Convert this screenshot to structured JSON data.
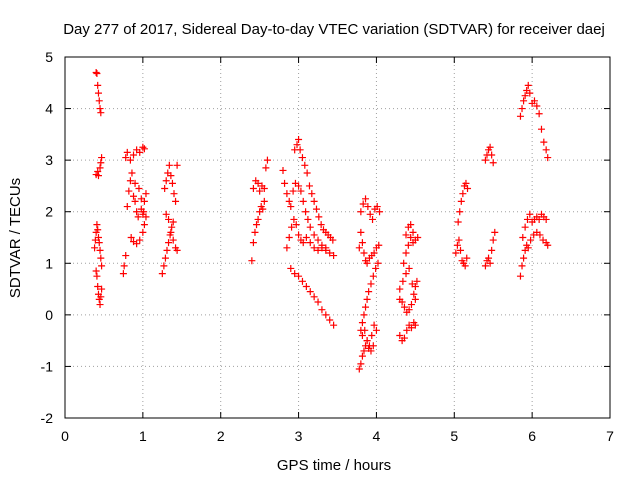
{
  "chart_data": {
    "type": "scatter",
    "title": "Day 277 of 2017, Sidereal Day-to-day VTEC variation (SDTVAR) for receiver daej",
    "xlabel": "GPS time / hours",
    "ylabel": "SDTVAR / TECUs",
    "xlim": [
      0,
      7
    ],
    "ylim": [
      -2,
      5
    ],
    "xticks": [
      "0",
      "1",
      "2",
      "3",
      "4",
      "5",
      "6",
      "7"
    ],
    "yticks": [
      "-2",
      "-1",
      "0",
      "1",
      "2",
      "3",
      "4",
      "5"
    ],
    "grid": true,
    "marker": "+",
    "series": [
      {
        "name": "SDTVAR",
        "color": "#ff0000",
        "points": [
          [
            0.4,
            4.7
          ],
          [
            0.41,
            4.68
          ],
          [
            0.42,
            4.45
          ],
          [
            0.43,
            4.3
          ],
          [
            0.44,
            4.15
          ],
          [
            0.45,
            4.0
          ],
          [
            0.46,
            3.92
          ],
          [
            0.4,
            2.72
          ],
          [
            0.42,
            2.78
          ],
          [
            0.43,
            2.7
          ],
          [
            0.45,
            2.85
          ],
          [
            0.46,
            2.95
          ],
          [
            0.47,
            3.05
          ],
          [
            0.38,
            1.3
          ],
          [
            0.39,
            1.45
          ],
          [
            0.4,
            1.6
          ],
          [
            0.41,
            1.75
          ],
          [
            0.42,
            1.65
          ],
          [
            0.43,
            1.5
          ],
          [
            0.44,
            1.4
          ],
          [
            0.45,
            1.25
          ],
          [
            0.46,
            1.1
          ],
          [
            0.47,
            0.95
          ],
          [
            0.4,
            0.85
          ],
          [
            0.41,
            0.75
          ],
          [
            0.42,
            0.55
          ],
          [
            0.43,
            0.4
          ],
          [
            0.44,
            0.3
          ],
          [
            0.45,
            0.2
          ],
          [
            0.46,
            0.35
          ],
          [
            0.47,
            0.5
          ],
          [
            0.75,
            0.8
          ],
          [
            0.76,
            0.95
          ],
          [
            0.78,
            1.15
          ],
          [
            0.8,
            2.1
          ],
          [
            0.82,
            2.4
          ],
          [
            0.84,
            2.6
          ],
          [
            0.86,
            2.75
          ],
          [
            0.88,
            2.3
          ],
          [
            0.9,
            2.2
          ],
          [
            0.92,
            2.0
          ],
          [
            0.94,
            1.9
          ],
          [
            0.78,
            3.05
          ],
          [
            0.8,
            3.15
          ],
          [
            0.84,
            3.0
          ],
          [
            0.88,
            3.1
          ],
          [
            0.92,
            3.2
          ],
          [
            0.96,
            3.15
          ],
          [
            1.0,
            3.25
          ],
          [
            1.02,
            3.22
          ],
          [
            0.85,
            1.5
          ],
          [
            0.88,
            1.42
          ],
          [
            0.92,
            1.38
          ],
          [
            0.96,
            1.45
          ],
          [
            1.0,
            1.6
          ],
          [
            1.02,
            1.75
          ],
          [
            0.98,
            2.05
          ],
          [
            1.0,
            1.95
          ],
          [
            1.02,
            2.2
          ],
          [
            1.04,
            2.35
          ],
          [
            0.9,
            2.55
          ],
          [
            0.95,
            2.45
          ],
          [
            0.98,
            2.25
          ],
          [
            1.01,
            2.0
          ],
          [
            1.04,
            1.9
          ],
          [
            1.25,
            0.8
          ],
          [
            1.27,
            0.95
          ],
          [
            1.29,
            1.1
          ],
          [
            1.31,
            1.25
          ],
          [
            1.33,
            1.4
          ],
          [
            1.35,
            1.55
          ],
          [
            1.37,
            1.7
          ],
          [
            1.39,
            1.8
          ],
          [
            1.28,
            2.45
          ],
          [
            1.3,
            2.6
          ],
          [
            1.32,
            2.75
          ],
          [
            1.34,
            2.9
          ],
          [
            1.36,
            2.7
          ],
          [
            1.38,
            2.55
          ],
          [
            1.4,
            2.35
          ],
          [
            1.42,
            2.2
          ],
          [
            1.44,
            2.9
          ],
          [
            1.3,
            1.95
          ],
          [
            1.33,
            1.85
          ],
          [
            1.36,
            1.6
          ],
          [
            1.39,
            1.45
          ],
          [
            1.42,
            1.3
          ],
          [
            1.44,
            1.25
          ],
          [
            2.4,
            1.05
          ],
          [
            2.42,
            1.4
          ],
          [
            2.44,
            1.6
          ],
          [
            2.46,
            1.75
          ],
          [
            2.48,
            1.85
          ],
          [
            2.5,
            2.0
          ],
          [
            2.52,
            2.1
          ],
          [
            2.54,
            2.05
          ],
          [
            2.56,
            2.2
          ],
          [
            2.42,
            2.45
          ],
          [
            2.45,
            2.6
          ],
          [
            2.48,
            2.55
          ],
          [
            2.5,
            2.4
          ],
          [
            2.53,
            2.5
          ],
          [
            2.56,
            2.45
          ],
          [
            2.58,
            2.85
          ],
          [
            2.6,
            3.0
          ],
          [
            2.8,
            2.8
          ],
          [
            2.82,
            2.55
          ],
          [
            2.85,
            2.35
          ],
          [
            2.88,
            2.2
          ],
          [
            2.9,
            2.1
          ],
          [
            2.93,
            2.4
          ],
          [
            2.96,
            2.55
          ],
          [
            3.0,
            2.5
          ],
          [
            3.03,
            2.4
          ],
          [
            3.06,
            2.2
          ],
          [
            3.09,
            2.0
          ],
          [
            3.12,
            1.85
          ],
          [
            3.15,
            1.7
          ],
          [
            3.2,
            1.55
          ],
          [
            3.25,
            1.45
          ],
          [
            3.3,
            1.35
          ],
          [
            3.35,
            1.3
          ],
          [
            3.4,
            1.2
          ],
          [
            3.45,
            1.15
          ],
          [
            2.85,
            1.3
          ],
          [
            2.88,
            1.5
          ],
          [
            2.91,
            1.7
          ],
          [
            2.94,
            1.85
          ],
          [
            2.97,
            1.75
          ],
          [
            3.0,
            1.55
          ],
          [
            3.03,
            1.45
          ],
          [
            3.06,
            1.4
          ],
          [
            3.1,
            1.5
          ],
          [
            3.15,
            1.4
          ],
          [
            3.2,
            1.3
          ],
          [
            3.25,
            1.25
          ],
          [
            3.3,
            1.3
          ],
          [
            3.35,
            1.25
          ],
          [
            2.95,
            3.2
          ],
          [
            2.98,
            3.3
          ],
          [
            3.0,
            3.4
          ],
          [
            3.02,
            3.2
          ],
          [
            3.05,
            3.05
          ],
          [
            3.08,
            2.9
          ],
          [
            3.11,
            2.75
          ],
          [
            3.14,
            2.5
          ],
          [
            3.17,
            2.35
          ],
          [
            3.2,
            2.2
          ],
          [
            3.23,
            2.05
          ],
          [
            3.26,
            1.9
          ],
          [
            3.29,
            1.75
          ],
          [
            3.32,
            1.65
          ],
          [
            3.35,
            1.6
          ],
          [
            3.38,
            1.55
          ],
          [
            3.41,
            1.5
          ],
          [
            3.44,
            1.45
          ],
          [
            2.9,
            0.9
          ],
          [
            2.95,
            0.8
          ],
          [
            3.0,
            0.75
          ],
          [
            3.05,
            0.65
          ],
          [
            3.1,
            0.55
          ],
          [
            3.15,
            0.45
          ],
          [
            3.2,
            0.35
          ],
          [
            3.25,
            0.25
          ],
          [
            3.3,
            0.1
          ],
          [
            3.35,
            0.0
          ],
          [
            3.4,
            -0.1
          ],
          [
            3.45,
            -0.2
          ],
          [
            3.78,
            -1.05
          ],
          [
            3.8,
            -0.95
          ],
          [
            3.82,
            -0.8
          ],
          [
            3.84,
            -0.7
          ],
          [
            3.86,
            -0.6
          ],
          [
            3.88,
            -0.5
          ],
          [
            3.9,
            -0.65
          ],
          [
            3.93,
            -0.7
          ],
          [
            3.96,
            -0.6
          ],
          [
            3.8,
            -0.3
          ],
          [
            3.82,
            -0.15
          ],
          [
            3.84,
            0.0
          ],
          [
            3.86,
            0.15
          ],
          [
            3.88,
            0.3
          ],
          [
            3.9,
            0.45
          ],
          [
            3.93,
            0.6
          ],
          [
            3.96,
            0.75
          ],
          [
            3.99,
            0.9
          ],
          [
            4.02,
            1.0
          ],
          [
            3.78,
            1.3
          ],
          [
            3.8,
            1.6
          ],
          [
            3.82,
            1.4
          ],
          [
            3.84,
            1.2
          ],
          [
            3.86,
            1.05
          ],
          [
            3.88,
            1.0
          ],
          [
            3.91,
            1.1
          ],
          [
            3.94,
            1.15
          ],
          [
            3.97,
            1.2
          ],
          [
            4.0,
            1.3
          ],
          [
            4.03,
            1.35
          ],
          [
            3.8,
            2.0
          ],
          [
            3.83,
            2.15
          ],
          [
            3.86,
            2.25
          ],
          [
            3.89,
            2.1
          ],
          [
            3.92,
            1.95
          ],
          [
            3.95,
            1.85
          ],
          [
            3.98,
            2.05
          ],
          [
            4.01,
            2.1
          ],
          [
            4.04,
            2.0
          ],
          [
            3.82,
            -0.4
          ],
          [
            3.85,
            -0.3
          ],
          [
            3.88,
            -0.5
          ],
          [
            3.91,
            -0.6
          ],
          [
            3.94,
            -0.4
          ],
          [
            3.97,
            -0.2
          ],
          [
            4.0,
            -0.3
          ],
          [
            4.3,
            -0.4
          ],
          [
            4.33,
            -0.5
          ],
          [
            4.36,
            -0.45
          ],
          [
            4.39,
            -0.3
          ],
          [
            4.42,
            -0.2
          ],
          [
            4.45,
            -0.25
          ],
          [
            4.48,
            -0.15
          ],
          [
            4.5,
            -0.2
          ],
          [
            4.3,
            0.3
          ],
          [
            4.33,
            0.25
          ],
          [
            4.36,
            0.15
          ],
          [
            4.39,
            0.05
          ],
          [
            4.42,
            0.1
          ],
          [
            4.45,
            0.2
          ],
          [
            4.48,
            0.4
          ],
          [
            4.5,
            0.55
          ],
          [
            4.52,
            0.65
          ],
          [
            4.35,
            1.0
          ],
          [
            4.38,
            1.2
          ],
          [
            4.41,
            1.35
          ],
          [
            4.44,
            1.5
          ],
          [
            4.47,
            1.4
          ],
          [
            4.5,
            1.45
          ],
          [
            4.53,
            1.5
          ],
          [
            4.38,
            1.55
          ],
          [
            4.41,
            1.7
          ],
          [
            4.44,
            1.75
          ],
          [
            4.47,
            1.6
          ],
          [
            4.3,
            0.5
          ],
          [
            4.34,
            0.65
          ],
          [
            4.38,
            0.8
          ],
          [
            4.42,
            0.9
          ],
          [
            4.46,
            0.6
          ],
          [
            4.5,
            0.3
          ],
          [
            5.02,
            1.2
          ],
          [
            5.04,
            1.35
          ],
          [
            5.06,
            1.45
          ],
          [
            5.08,
            1.25
          ],
          [
            5.1,
            1.05
          ],
          [
            5.12,
            1.0
          ],
          [
            5.14,
            0.95
          ],
          [
            5.16,
            1.1
          ],
          [
            5.05,
            1.8
          ],
          [
            5.07,
            2.0
          ],
          [
            5.09,
            2.2
          ],
          [
            5.11,
            2.35
          ],
          [
            5.13,
            2.5
          ],
          [
            5.15,
            2.55
          ],
          [
            5.17,
            2.45
          ],
          [
            5.4,
            0.95
          ],
          [
            5.42,
            1.05
          ],
          [
            5.44,
            1.1
          ],
          [
            5.46,
            1.0
          ],
          [
            5.48,
            1.25
          ],
          [
            5.5,
            1.45
          ],
          [
            5.52,
            1.6
          ],
          [
            5.4,
            3.0
          ],
          [
            5.42,
            3.1
          ],
          [
            5.44,
            3.2
          ],
          [
            5.46,
            3.25
          ],
          [
            5.48,
            3.1
          ],
          [
            5.5,
            2.95
          ],
          [
            5.85,
            0.75
          ],
          [
            5.87,
            0.95
          ],
          [
            5.89,
            1.1
          ],
          [
            5.91,
            1.25
          ],
          [
            5.93,
            1.35
          ],
          [
            5.95,
            1.3
          ],
          [
            5.98,
            1.45
          ],
          [
            6.02,
            1.55
          ],
          [
            6.06,
            1.6
          ],
          [
            6.1,
            1.55
          ],
          [
            6.14,
            1.45
          ],
          [
            6.18,
            1.4
          ],
          [
            6.2,
            1.35
          ],
          [
            5.88,
            1.5
          ],
          [
            5.91,
            1.7
          ],
          [
            5.94,
            1.85
          ],
          [
            5.97,
            1.95
          ],
          [
            6.0,
            1.8
          ],
          [
            6.03,
            1.85
          ],
          [
            6.06,
            1.9
          ],
          [
            6.09,
            1.85
          ],
          [
            6.12,
            1.95
          ],
          [
            6.15,
            1.9
          ],
          [
            6.18,
            1.85
          ],
          [
            5.85,
            3.85
          ],
          [
            5.87,
            4.0
          ],
          [
            5.89,
            4.15
          ],
          [
            5.91,
            4.25
          ],
          [
            5.93,
            4.35
          ],
          [
            5.95,
            4.45
          ],
          [
            5.97,
            4.3
          ],
          [
            6.0,
            4.1
          ],
          [
            6.03,
            4.15
          ],
          [
            6.06,
            4.05
          ],
          [
            6.09,
            3.9
          ],
          [
            6.12,
            3.6
          ],
          [
            6.15,
            3.35
          ],
          [
            6.18,
            3.2
          ],
          [
            6.2,
            3.05
          ]
        ]
      }
    ]
  }
}
